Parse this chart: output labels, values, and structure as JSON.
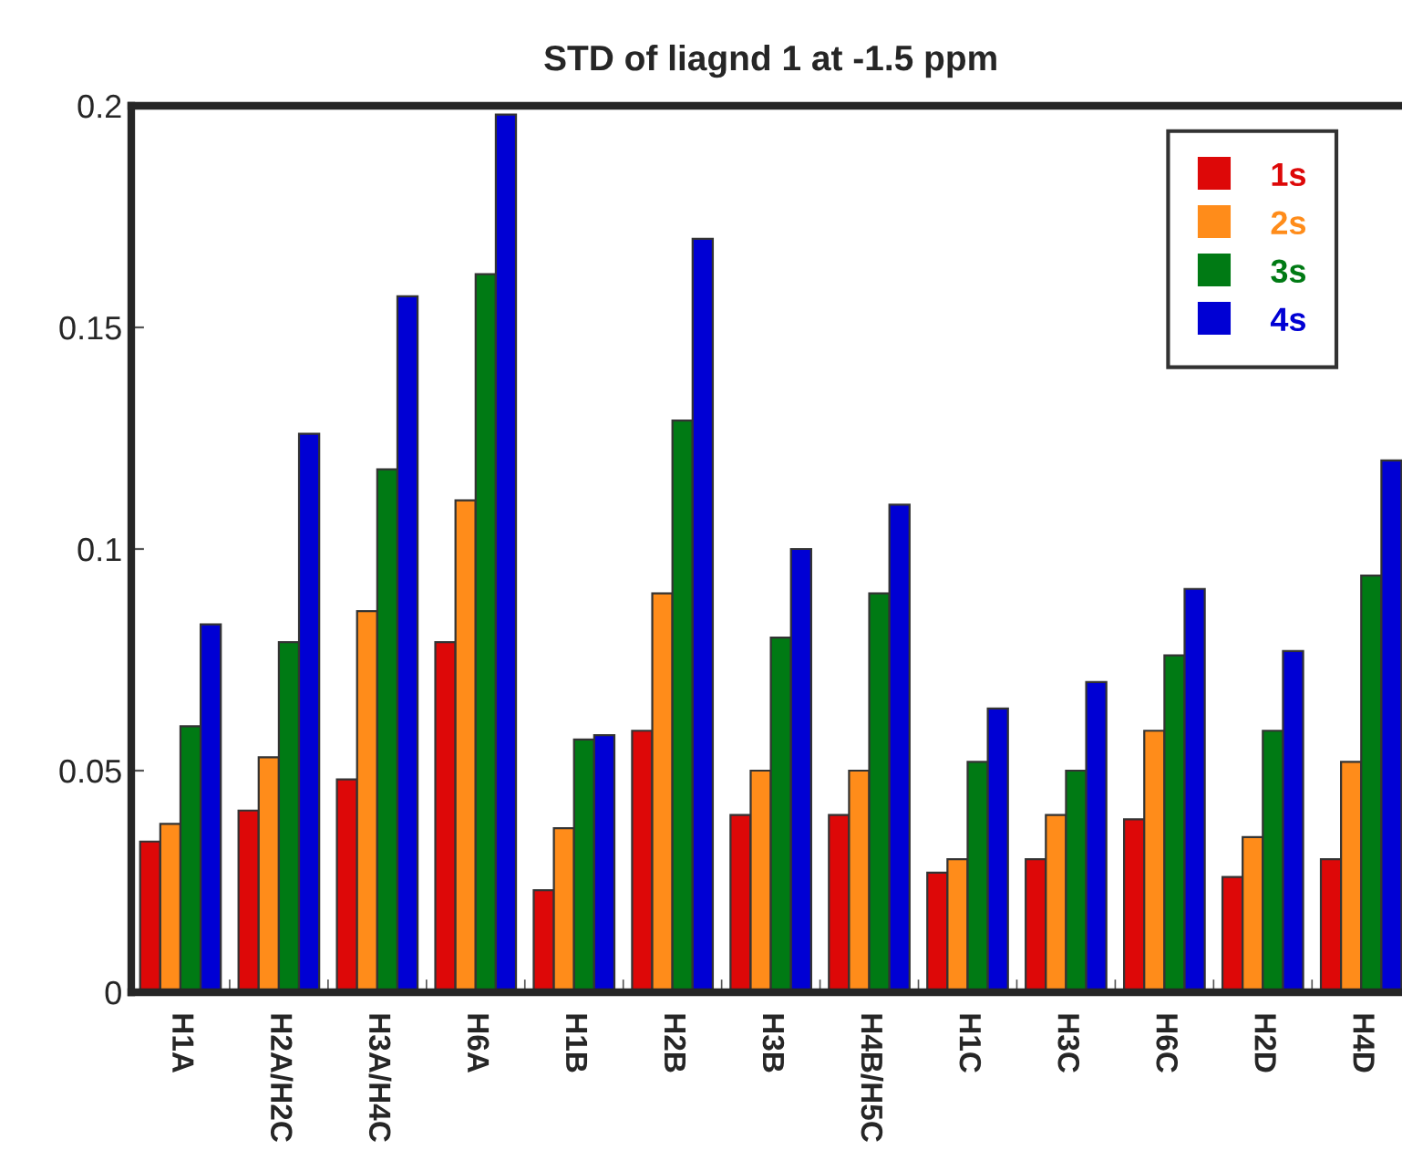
{
  "chart_data": {
    "type": "bar",
    "title": "STD of liagnd 1 at -1.5 ppm",
    "categories": [
      "H1A",
      "H2A/H2C",
      "H3A/H4C",
      "H6A",
      "H1B",
      "H2B",
      "H3B",
      "H4B/H5C",
      "H1C",
      "H3C",
      "H6C",
      "H2D",
      "H4D"
    ],
    "series": [
      {
        "name": "1s",
        "color": "#dd0808",
        "values": [
          0.034,
          0.041,
          0.048,
          0.079,
          0.023,
          0.059,
          0.04,
          0.04,
          0.027,
          0.03,
          0.039,
          0.026,
          0.03
        ]
      },
      {
        "name": "2s",
        "color": "#ff8c1a",
        "values": [
          0.038,
          0.053,
          0.086,
          0.111,
          0.037,
          0.09,
          0.05,
          0.05,
          0.03,
          0.04,
          0.059,
          0.035,
          0.052
        ]
      },
      {
        "name": "3s",
        "color": "#007a14",
        "values": [
          0.06,
          0.079,
          0.118,
          0.162,
          0.057,
          0.129,
          0.08,
          0.09,
          0.052,
          0.05,
          0.076,
          0.059,
          0.094
        ]
      },
      {
        "name": "4s",
        "color": "#0000d4",
        "values": [
          0.083,
          0.126,
          0.157,
          0.198,
          0.058,
          0.17,
          0.1,
          0.11,
          0.064,
          0.07,
          0.091,
          0.077,
          0.12
        ]
      }
    ],
    "ylim": [
      0,
      0.2
    ],
    "yticks": [
      0,
      0.05,
      0.1,
      0.15,
      0.2
    ],
    "grid": false,
    "legend": "top right"
  }
}
